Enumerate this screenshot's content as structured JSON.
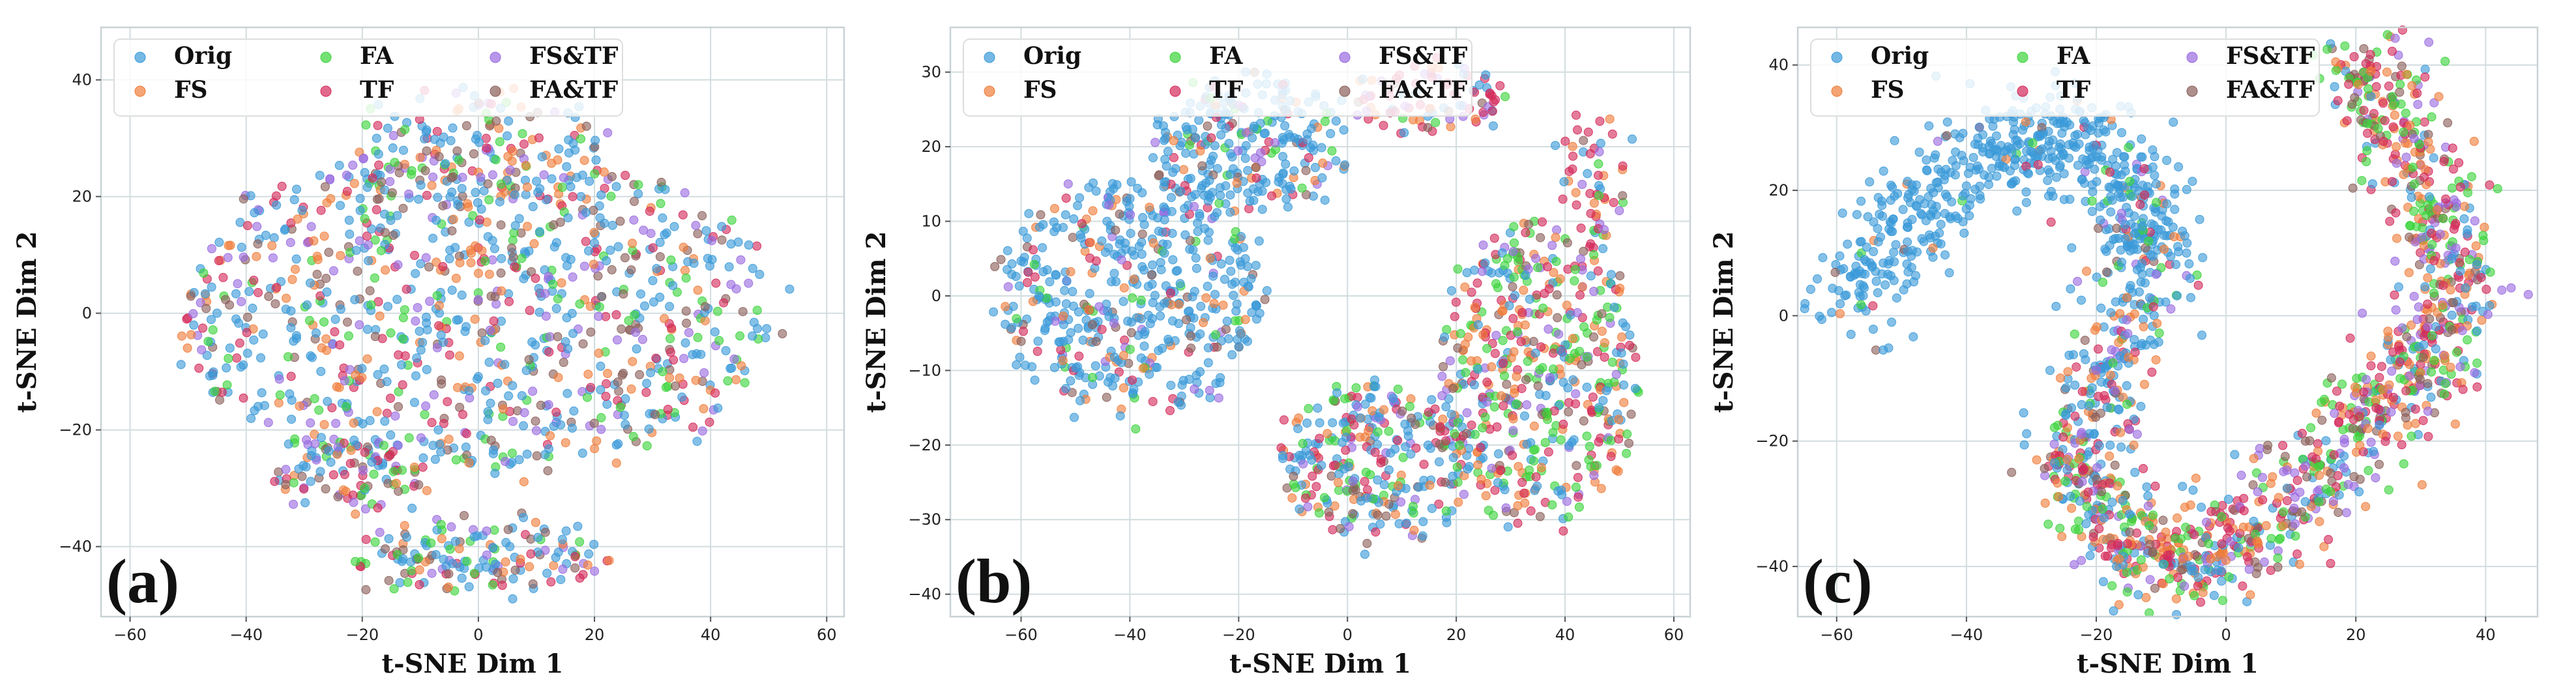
{
  "legend_entries": [
    {
      "name": "Orig",
      "color": "#3a9ad9"
    },
    {
      "name": "FS",
      "color": "#f07d3a"
    },
    {
      "name": "FA",
      "color": "#3ad43a"
    },
    {
      "name": "TF",
      "color": "#d42a5a"
    },
    {
      "name": "FS&TF",
      "color": "#9a6ae0"
    },
    {
      "name": "FA&TF",
      "color": "#8a5f5a"
    }
  ],
  "chart_data": [
    {
      "type": "scatter",
      "panel_label": "(a)",
      "xlabel": "t-SNE Dim 1",
      "ylabel": "t-SNE Dim 2",
      "xlim": [
        -65,
        63
      ],
      "ylim": [
        -52,
        49
      ],
      "xticks": [
        -60,
        -40,
        -20,
        0,
        20,
        40,
        60
      ],
      "yticks": [
        -40,
        -20,
        0,
        20,
        40
      ],
      "grid": true,
      "legend_placement": "top-left",
      "series": [
        "Orig",
        "FS",
        "FA",
        "TF",
        "FS&TF",
        "FA&TF"
      ],
      "clusters": [
        {
          "cx": 0,
          "cy": 0,
          "rx": 52,
          "ry": 28,
          "n": 1000,
          "mix": [
            0.38,
            0.13,
            0.13,
            0.12,
            0.12,
            0.12
          ]
        },
        {
          "cx": 0,
          "cy": 28,
          "rx": 22,
          "ry": 10,
          "n": 150,
          "mix": [
            0.3,
            0.2,
            0.14,
            0.12,
            0.12,
            0.12
          ]
        },
        {
          "cx": -22,
          "cy": -28,
          "rx": 12,
          "ry": 6,
          "n": 90,
          "mix": [
            0.3,
            0.15,
            0.15,
            0.15,
            0.12,
            0.13
          ]
        },
        {
          "cx": 0,
          "cy": -42,
          "rx": 22,
          "ry": 6,
          "n": 160,
          "mix": [
            0.35,
            0.12,
            0.15,
            0.15,
            0.1,
            0.13
          ]
        }
      ]
    },
    {
      "type": "scatter",
      "panel_label": "(b)",
      "xlabel": "t-SNE Dim 1",
      "ylabel": "t-SNE Dim 2",
      "xlim": [
        -73,
        63
      ],
      "ylim": [
        -43,
        36
      ],
      "xticks": [
        -60,
        -40,
        -20,
        0,
        20,
        40,
        60
      ],
      "yticks": [
        -40,
        -30,
        -20,
        -10,
        0,
        10,
        20,
        30
      ],
      "grid": true,
      "legend_placement": "top-left",
      "series": [
        "Orig",
        "FS",
        "FA",
        "TF",
        "FS&TF",
        "FA&TF"
      ],
      "clusters": [
        {
          "cx": -40,
          "cy": 0,
          "rx": 24,
          "ry": 16,
          "n": 500,
          "mix": [
            0.62,
            0.1,
            0.07,
            0.08,
            0.07,
            0.06
          ]
        },
        {
          "cx": -18,
          "cy": 20,
          "rx": 18,
          "ry": 9,
          "n": 260,
          "mix": [
            0.7,
            0.08,
            0.06,
            0.06,
            0.05,
            0.05
          ]
        },
        {
          "cx": 15,
          "cy": 26,
          "rx": 14,
          "ry": 5,
          "n": 90,
          "mix": [
            0.2,
            0.1,
            0.1,
            0.4,
            0.1,
            0.1
          ]
        },
        {
          "cx": 5,
          "cy": -22,
          "rx": 18,
          "ry": 10,
          "n": 300,
          "mix": [
            0.35,
            0.15,
            0.15,
            0.15,
            0.1,
            0.1
          ]
        },
        {
          "cx": 35,
          "cy": -10,
          "rx": 18,
          "ry": 20,
          "n": 500,
          "mix": [
            0.18,
            0.2,
            0.25,
            0.17,
            0.12,
            0.08
          ]
        },
        {
          "cx": 45,
          "cy": 15,
          "rx": 6,
          "ry": 10,
          "n": 60,
          "mix": [
            0.15,
            0.15,
            0.15,
            0.35,
            0.1,
            0.1
          ]
        }
      ]
    },
    {
      "type": "scatter",
      "panel_label": "(c)",
      "xlabel": "t-SNE Dim 1",
      "ylabel": "t-SNE Dim 2",
      "xlim": [
        -66,
        48
      ],
      "ylim": [
        -48,
        46
      ],
      "xticks": [
        -60,
        -40,
        -20,
        0,
        20,
        40
      ],
      "yticks": [
        -40,
        -20,
        0,
        20,
        40
      ],
      "grid": true,
      "legend_placement": "top-left",
      "series": [
        "Orig",
        "FS",
        "FA",
        "TF",
        "FS&TF",
        "FA&TF"
      ],
      "path_points": [
        [
          -60,
          2
        ],
        [
          -48,
          16
        ],
        [
          -36,
          26
        ],
        [
          -24,
          30
        ],
        [
          -14,
          20
        ],
        [
          -12,
          8
        ],
        [
          -17,
          -8
        ],
        [
          -24,
          -22
        ],
        [
          -16,
          -36
        ],
        [
          -4,
          -40
        ],
        [
          8,
          -32
        ],
        [
          18,
          -20
        ],
        [
          28,
          -10
        ],
        [
          36,
          2
        ],
        [
          32,
          18
        ],
        [
          24,
          32
        ],
        [
          22,
          42
        ]
      ],
      "path_mix": [
        [
          0.95,
          0.01,
          0.01,
          0.01,
          0.01,
          0.01
        ],
        [
          0.95,
          0.01,
          0.01,
          0.01,
          0.01,
          0.01
        ],
        [
          0.95,
          0.01,
          0.01,
          0.01,
          0.01,
          0.01
        ],
        [
          0.9,
          0.02,
          0.02,
          0.02,
          0.02,
          0.02
        ],
        [
          0.8,
          0.05,
          0.04,
          0.04,
          0.04,
          0.03
        ],
        [
          0.65,
          0.1,
          0.07,
          0.07,
          0.06,
          0.05
        ],
        [
          0.5,
          0.15,
          0.1,
          0.1,
          0.08,
          0.07
        ],
        [
          0.3,
          0.2,
          0.15,
          0.15,
          0.1,
          0.1
        ],
        [
          0.2,
          0.22,
          0.15,
          0.2,
          0.12,
          0.11
        ],
        [
          0.15,
          0.22,
          0.15,
          0.22,
          0.14,
          0.12
        ],
        [
          0.12,
          0.2,
          0.18,
          0.22,
          0.16,
          0.12
        ],
        [
          0.12,
          0.22,
          0.18,
          0.22,
          0.14,
          0.12
        ],
        [
          0.14,
          0.2,
          0.22,
          0.2,
          0.14,
          0.1
        ],
        [
          0.14,
          0.22,
          0.22,
          0.18,
          0.14,
          0.1
        ],
        [
          0.12,
          0.18,
          0.26,
          0.18,
          0.16,
          0.1
        ],
        [
          0.1,
          0.15,
          0.28,
          0.22,
          0.15,
          0.1
        ],
        [
          0.1,
          0.12,
          0.3,
          0.24,
          0.14,
          0.1
        ]
      ],
      "n": 2000,
      "spread": 4
    }
  ]
}
